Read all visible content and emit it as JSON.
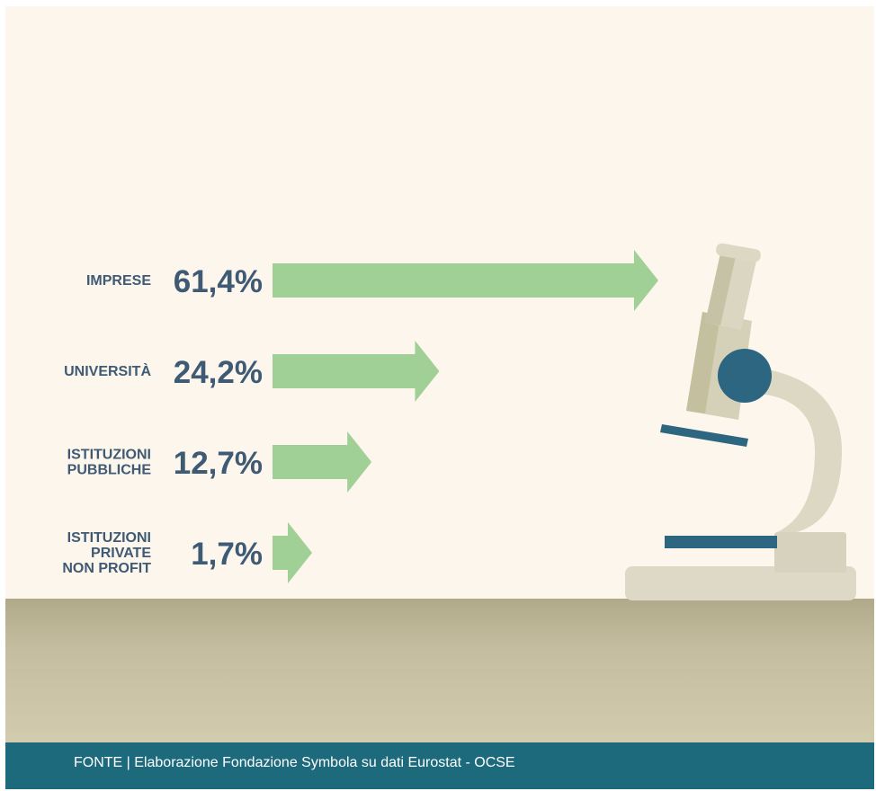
{
  "chart_data": {
    "type": "bar",
    "orientation": "horizontal",
    "categories": [
      [
        "IMPRESE"
      ],
      [
        "UNIVERSITÀ"
      ],
      [
        "ISTITUZIONI",
        "PUBBLICHE"
      ],
      [
        "ISTITUZIONI",
        "PRIVATE",
        "NON PROFIT"
      ]
    ],
    "values": [
      61.4,
      24.2,
      12.7,
      1.7
    ],
    "value_labels": [
      "61,4%",
      "24,2%",
      "12,7%",
      "1,7%"
    ],
    "unit": "%",
    "title": "",
    "xlabel": "",
    "ylabel": "",
    "grid": false
  },
  "footer": {
    "source": "FONTE | Elaborazione Fondazione Symbola su dati Eurostat - OCSE"
  },
  "colors": {
    "background": "#fcf6ec",
    "arrow": "#a0d096",
    "label_text": "#3e5a74",
    "footer_bg": "#1d6a7c",
    "table_top": "#b0a98a",
    "microscope_body": "#ddd9c6",
    "microscope_accent": "#2c6680"
  },
  "illustration": {
    "icon": "microscope-icon"
  }
}
